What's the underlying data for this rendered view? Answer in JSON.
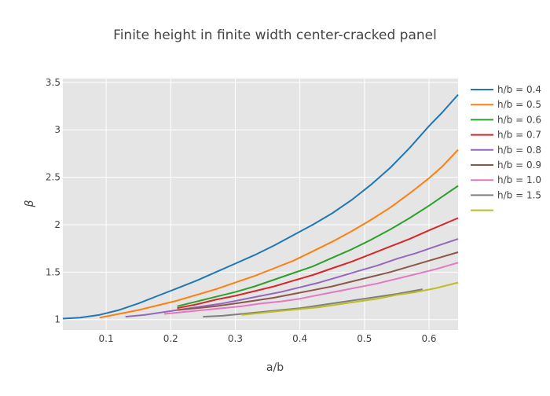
{
  "chart_data": {
    "type": "line",
    "title": "Finite height in finite width center-cracked panel",
    "xlabel": "a/b",
    "ylabel": "β",
    "xlim": [
      0.033,
      0.645
    ],
    "ylim": [
      0.89,
      3.54
    ],
    "x_ticks": [
      0.1,
      0.2,
      0.3,
      0.4,
      0.5,
      0.6
    ],
    "x_tick_labels": [
      "0.1",
      "0.2",
      "0.3",
      "0.4",
      "0.5",
      "0.6"
    ],
    "y_ticks": [
      1,
      1.5,
      2,
      2.5,
      3,
      3.5
    ],
    "y_tick_labels": [
      "1",
      "1.5",
      "2",
      "2.5",
      "3",
      "3.5"
    ],
    "grid": true,
    "legend_position": "right",
    "series": [
      {
        "name": "h/b = 0.4",
        "color": "#1f77b4",
        "x": [
          0.033,
          0.06,
          0.09,
          0.12,
          0.15,
          0.18,
          0.21,
          0.24,
          0.27,
          0.3,
          0.33,
          0.36,
          0.39,
          0.42,
          0.45,
          0.48,
          0.51,
          0.54,
          0.57,
          0.6,
          0.62,
          0.645
        ],
        "y": [
          1.01,
          1.02,
          1.05,
          1.1,
          1.17,
          1.25,
          1.33,
          1.41,
          1.5,
          1.59,
          1.68,
          1.78,
          1.89,
          2.0,
          2.12,
          2.26,
          2.42,
          2.6,
          2.81,
          3.04,
          3.18,
          3.37
        ]
      },
      {
        "name": "h/b = 0.5",
        "color": "#ff7f0e",
        "x": [
          0.09,
          0.12,
          0.15,
          0.18,
          0.21,
          0.24,
          0.27,
          0.3,
          0.33,
          0.36,
          0.39,
          0.42,
          0.45,
          0.48,
          0.51,
          0.54,
          0.57,
          0.6,
          0.62,
          0.645
        ],
        "y": [
          1.02,
          1.06,
          1.1,
          1.15,
          1.2,
          1.26,
          1.32,
          1.39,
          1.46,
          1.54,
          1.62,
          1.72,
          1.82,
          1.93,
          2.05,
          2.18,
          2.33,
          2.49,
          2.61,
          2.79
        ]
      },
      {
        "name": "h/b = 0.6",
        "color": "#2ca02c",
        "x": [
          0.21,
          0.24,
          0.27,
          0.3,
          0.33,
          0.36,
          0.39,
          0.42,
          0.45,
          0.48,
          0.51,
          0.54,
          0.57,
          0.6,
          0.645
        ],
        "y": [
          1.14,
          1.19,
          1.24,
          1.29,
          1.35,
          1.42,
          1.49,
          1.56,
          1.65,
          1.74,
          1.84,
          1.95,
          2.07,
          2.2,
          2.41
        ]
      },
      {
        "name": "h/b = 0.7",
        "color": "#d62728",
        "x": [
          0.21,
          0.24,
          0.27,
          0.3,
          0.33,
          0.36,
          0.39,
          0.42,
          0.45,
          0.48,
          0.51,
          0.54,
          0.57,
          0.6,
          0.645
        ],
        "y": [
          1.12,
          1.16,
          1.21,
          1.25,
          1.3,
          1.35,
          1.41,
          1.47,
          1.54,
          1.61,
          1.69,
          1.77,
          1.85,
          1.94,
          2.07
        ]
      },
      {
        "name": "h/b = 0.8",
        "color": "#9467bd",
        "x": [
          0.13,
          0.16,
          0.19,
          0.22,
          0.25,
          0.28,
          0.31,
          0.34,
          0.37,
          0.4,
          0.43,
          0.46,
          0.49,
          0.52,
          0.55,
          0.58,
          0.61,
          0.645
        ],
        "y": [
          1.03,
          1.05,
          1.08,
          1.11,
          1.14,
          1.17,
          1.21,
          1.25,
          1.29,
          1.34,
          1.39,
          1.45,
          1.51,
          1.57,
          1.64,
          1.7,
          1.77,
          1.85
        ]
      },
      {
        "name": "h/b = 0.9",
        "color": "#8c564b",
        "x": [
          0.21,
          0.24,
          0.27,
          0.3,
          0.33,
          0.36,
          0.39,
          0.42,
          0.45,
          0.48,
          0.51,
          0.54,
          0.57,
          0.6,
          0.645
        ],
        "y": [
          1.1,
          1.12,
          1.14,
          1.17,
          1.2,
          1.23,
          1.27,
          1.31,
          1.35,
          1.4,
          1.45,
          1.5,
          1.56,
          1.62,
          1.71
        ]
      },
      {
        "name": "h/b = 1.0",
        "color": "#e377c2",
        "x": [
          0.19,
          0.22,
          0.25,
          0.28,
          0.31,
          0.34,
          0.37,
          0.4,
          0.43,
          0.46,
          0.49,
          0.52,
          0.55,
          0.58,
          0.61,
          0.645
        ],
        "y": [
          1.06,
          1.08,
          1.1,
          1.12,
          1.14,
          1.17,
          1.19,
          1.22,
          1.26,
          1.3,
          1.34,
          1.38,
          1.43,
          1.48,
          1.53,
          1.6
        ]
      },
      {
        "name": "h/b = 1.5",
        "color": "#7f7f7f",
        "x": [
          0.25,
          0.28,
          0.31,
          0.34,
          0.37,
          0.4,
          0.43,
          0.46,
          0.49,
          0.52,
          0.55,
          0.59
        ],
        "y": [
          1.03,
          1.04,
          1.06,
          1.08,
          1.1,
          1.12,
          1.15,
          1.18,
          1.21,
          1.24,
          1.27,
          1.32
        ]
      },
      {
        "name": "",
        "color": "#bcbd22",
        "x": [
          0.31,
          0.34,
          0.37,
          0.4,
          0.43,
          0.46,
          0.49,
          0.52,
          0.55,
          0.58,
          0.61,
          0.645
        ],
        "y": [
          1.05,
          1.07,
          1.09,
          1.11,
          1.13,
          1.16,
          1.19,
          1.22,
          1.26,
          1.29,
          1.33,
          1.39
        ]
      }
    ]
  }
}
